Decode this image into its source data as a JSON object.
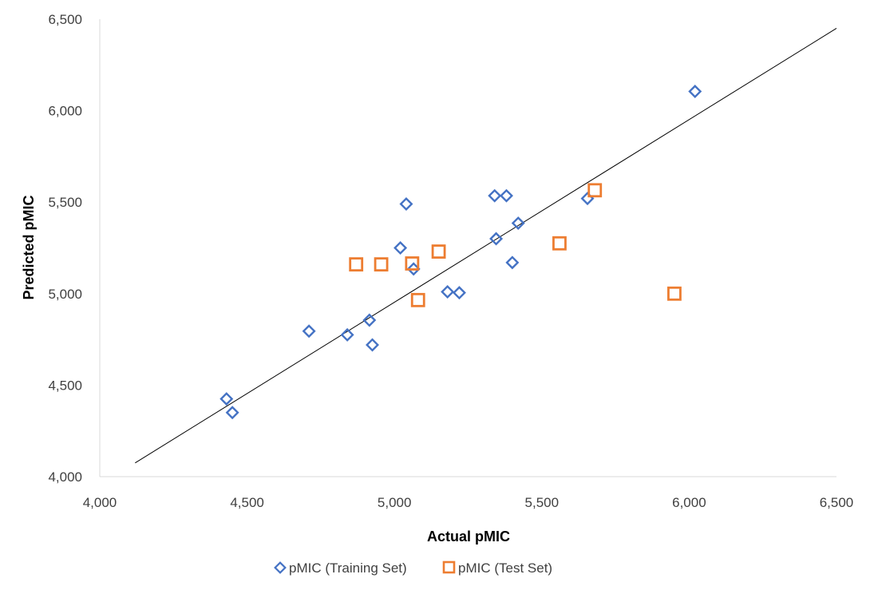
{
  "chart_data": {
    "type": "scatter",
    "xlabel": "Actual pMIC",
    "ylabel": "Predicted pMIC",
    "xlim": [
      4000,
      6500
    ],
    "ylim": [
      4000,
      6500
    ],
    "x_ticks": [
      4000,
      4500,
      5000,
      5500,
      6000,
      6500
    ],
    "y_ticks": [
      4000,
      4500,
      5000,
      5500,
      6000,
      6500
    ],
    "x_tick_labels": [
      "4,000",
      "4,500",
      "5,000",
      "5,500",
      "6,000",
      "6,500"
    ],
    "y_tick_labels": [
      "4,000",
      "4,500",
      "5,000",
      "5,500",
      "6,000",
      "6,500"
    ],
    "grid": false,
    "legend_position": "bottom",
    "series": [
      {
        "name": "pMIC (Training Set)",
        "marker": "diamond",
        "color": "#4472C4",
        "points": [
          {
            "x": 4430,
            "y": 4425
          },
          {
            "x": 4450,
            "y": 4350
          },
          {
            "x": 4710,
            "y": 4795
          },
          {
            "x": 4840,
            "y": 4775
          },
          {
            "x": 4915,
            "y": 4855
          },
          {
            "x": 4925,
            "y": 4720
          },
          {
            "x": 5020,
            "y": 5250
          },
          {
            "x": 5040,
            "y": 5490
          },
          {
            "x": 5065,
            "y": 5135
          },
          {
            "x": 5180,
            "y": 5010
          },
          {
            "x": 5220,
            "y": 5005
          },
          {
            "x": 5340,
            "y": 5535
          },
          {
            "x": 5345,
            "y": 5300
          },
          {
            "x": 5380,
            "y": 5535
          },
          {
            "x": 5400,
            "y": 5170
          },
          {
            "x": 5420,
            "y": 5385
          },
          {
            "x": 5655,
            "y": 5520
          },
          {
            "x": 6020,
            "y": 6105
          }
        ]
      },
      {
        "name": "pMIC (Test Set)",
        "marker": "square",
        "color": "#ED7D31",
        "points": [
          {
            "x": 4870,
            "y": 5160
          },
          {
            "x": 4955,
            "y": 5160
          },
          {
            "x": 5060,
            "y": 5165
          },
          {
            "x": 5080,
            "y": 4965
          },
          {
            "x": 5150,
            "y": 5230
          },
          {
            "x": 5560,
            "y": 5275
          },
          {
            "x": 5680,
            "y": 5565
          },
          {
            "x": 5950,
            "y": 5000
          }
        ]
      }
    ],
    "trendline": {
      "color": "#000000",
      "from": {
        "x": 4120,
        "y": 4075
      },
      "to": {
        "x": 6500,
        "y": 6450
      }
    }
  }
}
